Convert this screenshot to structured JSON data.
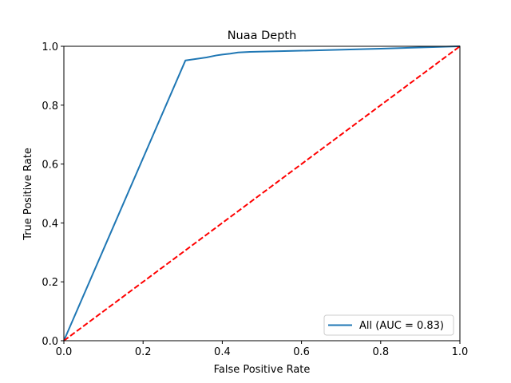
{
  "chart_data": {
    "type": "line",
    "title": "Nuaa Depth",
    "xlabel": "False Positive Rate",
    "ylabel": "True Positive Rate",
    "xlim": [
      0,
      1
    ],
    "ylim": [
      0,
      1
    ],
    "xticks": [
      "0.0",
      "0.2",
      "0.4",
      "0.6",
      "0.8",
      "1.0"
    ],
    "yticks": [
      "0.0",
      "0.2",
      "0.4",
      "0.6",
      "0.8",
      "1.0"
    ],
    "grid": false,
    "legend_position": "lower-right",
    "series": [
      {
        "name": "All (AUC = 0.83)",
        "color": "#1f77b4",
        "style": "solid",
        "x": [
          0.0,
          0.307,
          0.36,
          0.385,
          0.4,
          0.42,
          0.44,
          0.47,
          0.6,
          0.8,
          1.0
        ],
        "y": [
          0.0,
          0.952,
          0.962,
          0.969,
          0.972,
          0.975,
          0.979,
          0.981,
          0.985,
          0.992,
          1.0
        ]
      },
      {
        "name": "",
        "color": "#ff0000",
        "style": "dashed",
        "x": [
          0.0,
          1.0
        ],
        "y": [
          0.0,
          1.0
        ]
      }
    ]
  }
}
